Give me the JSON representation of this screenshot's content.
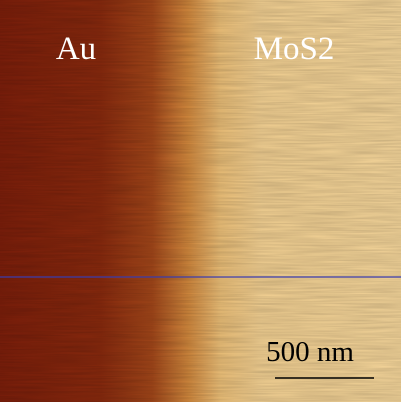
{
  "image": {
    "labels": {
      "left": "Au",
      "right": "MoS2"
    },
    "scale_bar": {
      "label": "500 nm"
    }
  }
}
